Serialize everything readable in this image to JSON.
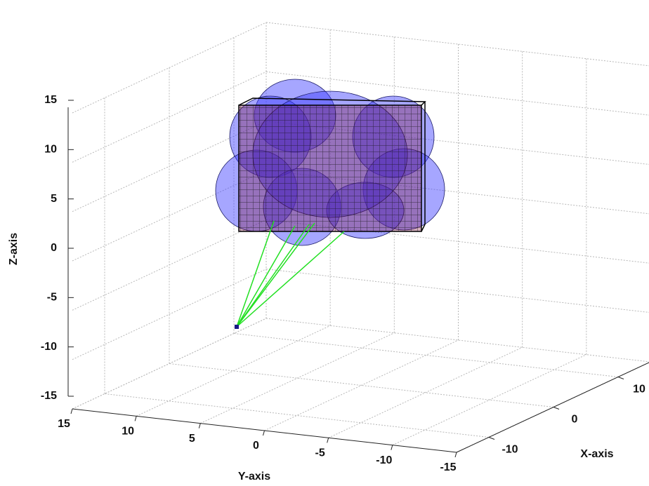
{
  "chart_data": {
    "type": "surface3d",
    "xlabel": "X-axis",
    "ylabel": "Y-axis",
    "zlabel": "Z-axis",
    "xlim": [
      -15,
      15
    ],
    "ylim": [
      -15,
      15
    ],
    "zlim": [
      -15,
      15
    ],
    "xticks": [
      -10,
      0,
      10
    ],
    "yticks": [
      -15,
      -10,
      -5,
      0,
      5,
      10,
      15
    ],
    "zticks": [
      -15,
      -10,
      -5,
      0,
      5,
      10,
      15
    ],
    "grid": true
  }
}
